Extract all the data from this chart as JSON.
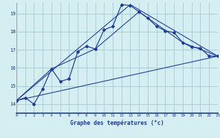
{
  "background_color": "#d4eef2",
  "grid_color": "#a8cdd4",
  "line_color": "#1a3aaa",
  "xlabel": "Graphe des températures (°c)",
  "xlim": [
    0,
    23
  ],
  "ylim": [
    13.5,
    19.6
  ],
  "yticks": [
    14,
    15,
    16,
    17,
    18,
    19
  ],
  "xticks": [
    0,
    1,
    2,
    3,
    4,
    5,
    6,
    7,
    8,
    9,
    10,
    11,
    12,
    13,
    14,
    15,
    16,
    17,
    18,
    19,
    20,
    21,
    22,
    23
  ],
  "series1_x": [
    0,
    1,
    2,
    3,
    4,
    5,
    6,
    7,
    8,
    9,
    10,
    11,
    12,
    13,
    14,
    15,
    16,
    17,
    18,
    19,
    20,
    21,
    22,
    23
  ],
  "series1_y": [
    14.2,
    14.35,
    14.0,
    14.85,
    15.95,
    15.25,
    15.4,
    16.9,
    17.2,
    17.05,
    18.1,
    18.3,
    19.5,
    19.45,
    19.1,
    18.75,
    18.3,
    18.05,
    17.95,
    17.4,
    17.15,
    17.1,
    16.65,
    16.65
  ],
  "series2_x": [
    0,
    23
  ],
  "series2_y": [
    14.2,
    16.65
  ],
  "series3_x": [
    0,
    13,
    23
  ],
  "series3_y": [
    14.2,
    19.5,
    16.65
  ],
  "series4_x": [
    0,
    4,
    9,
    14,
    19,
    23
  ],
  "series4_y": [
    14.2,
    15.95,
    17.05,
    19.1,
    17.4,
    16.65
  ]
}
